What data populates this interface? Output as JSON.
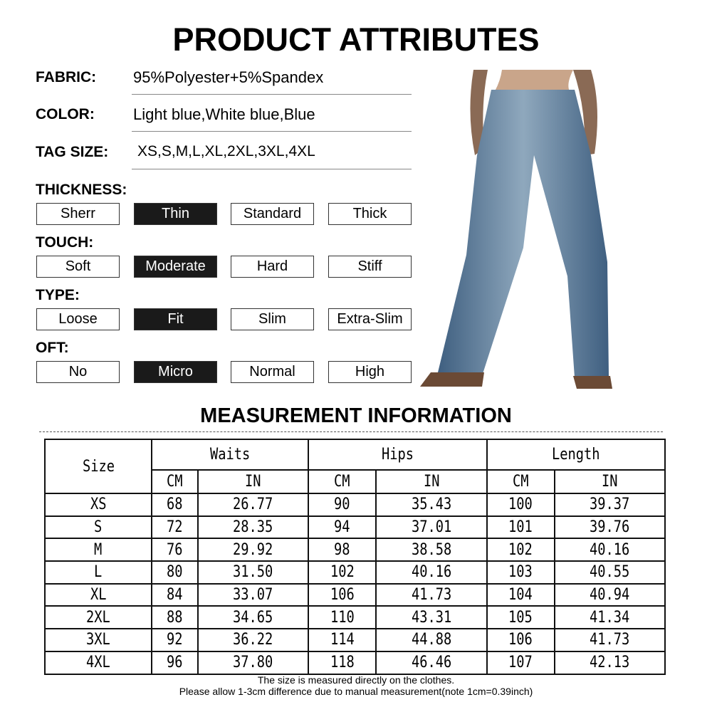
{
  "title": "PRODUCT ATTRIBUTES",
  "attributes": [
    {
      "label": "FABRIC:",
      "value": "95%Polyester+5%Spandex"
    },
    {
      "label": "COLOR:",
      "value": "Light blue,White blue,Blue"
    },
    {
      "label": "TAG SIZE:",
      "value": "XS,S,M,L,XL,2XL,3XL,4XL"
    }
  ],
  "sections": [
    {
      "label": "THICKNESS:",
      "options": [
        "Sherr",
        "Thin",
        "Standard",
        "Thick"
      ],
      "selected": 1
    },
    {
      "label": "TOUCH:",
      "options": [
        "Soft",
        "Moderate",
        "Hard",
        "Stiff"
      ],
      "selected": 1
    },
    {
      "label": "TYPE:",
      "options": [
        "Loose",
        "Fit",
        "Slim",
        "Extra-Slim"
      ],
      "selected": 1
    },
    {
      "label": "OFT:",
      "options": [
        "No",
        "Micro",
        "Normal",
        "High"
      ],
      "selected": 1
    }
  ],
  "measurement": {
    "title": "MEASUREMENT INFORMATION",
    "size_header": "Size",
    "groups": [
      "Waits",
      "Hips",
      "Length"
    ],
    "units": [
      "CM",
      "IN",
      "CM",
      "IN",
      "CM",
      "IN"
    ],
    "rows": [
      [
        "XS",
        "68",
        "26.77",
        "90",
        "35.43",
        "100",
        "39.37"
      ],
      [
        "S",
        "72",
        "28.35",
        "94",
        "37.01",
        "101",
        "39.76"
      ],
      [
        "M",
        "76",
        "29.92",
        "98",
        "38.58",
        "102",
        "40.16"
      ],
      [
        "L",
        "80",
        "31.50",
        "102",
        "40.16",
        "103",
        "40.55"
      ],
      [
        "XL",
        "84",
        "33.07",
        "106",
        "41.73",
        "104",
        "40.94"
      ],
      [
        "2XL",
        "88",
        "34.65",
        "110",
        "43.31",
        "105",
        "41.34"
      ],
      [
        "3XL",
        "92",
        "36.22",
        "114",
        "44.88",
        "106",
        "41.73"
      ],
      [
        "4XL",
        "96",
        "37.80",
        "118",
        "46.46",
        "107",
        "42.13"
      ]
    ],
    "notes": [
      "The size is measured directly on the clothes.",
      "Please allow 1-3cm difference due to manual measurement(note 1cm=0.39inch)"
    ]
  },
  "colors": {
    "denim": "#5f7f9f",
    "selected": "#1a1a1a"
  }
}
